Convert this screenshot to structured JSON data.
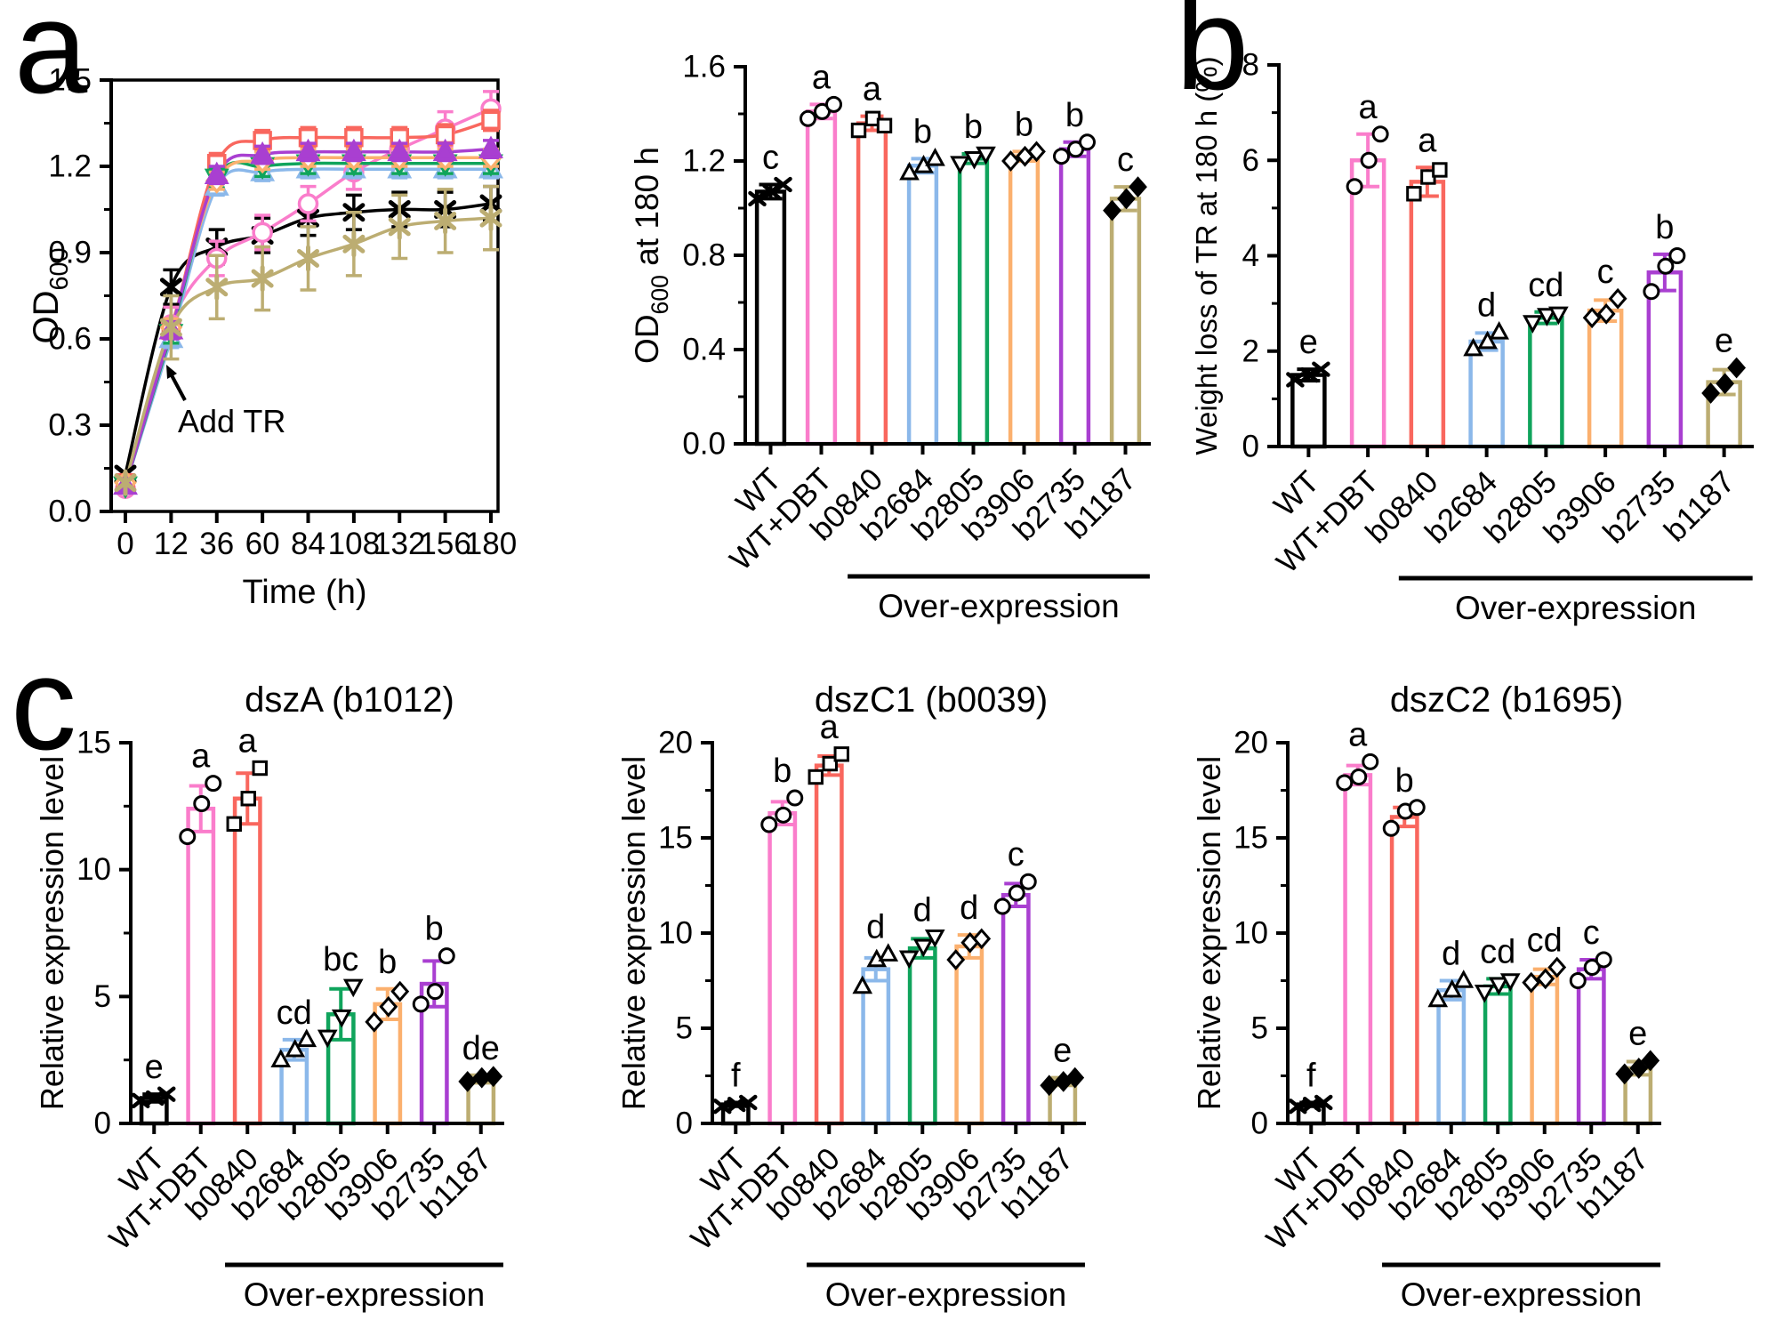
{
  "panel_labels": {
    "a": "a",
    "b": "b",
    "c": "c"
  },
  "palette": {
    "WT": "#000000",
    "WT+DBT": "#FA7DCB",
    "b0840": "#F9675E",
    "b2684": "#8BB8EA",
    "b2805": "#10A45C",
    "b3906": "#FBB06E",
    "b2735": "#A93FD1",
    "b1187": "#BCAD72"
  },
  "categories": [
    "WT",
    "WT+DBT",
    "b0840",
    "b2684",
    "b2805",
    "b3906",
    "b2735",
    "b1187"
  ],
  "group_label": "Over-expression",
  "chart_data": [
    {
      "id": "growth-curve",
      "panel": "a",
      "type": "line",
      "xlabel": "Time (h)",
      "ylabel": "OD_{600}",
      "x": [
        0,
        12,
        36,
        60,
        84,
        108,
        132,
        156,
        180
      ],
      "ylim": [
        0,
        1.5
      ],
      "yticks": [
        "0.0",
        "0.3",
        "0.6",
        "0.9",
        "1.2",
        "1.5"
      ],
      "annotation": "Add TR",
      "legend": "none",
      "series": [
        {
          "name": "WT",
          "marker": "x",
          "filled": false,
          "err": 0.06,
          "values": [
            0.13,
            0.78,
            0.92,
            0.96,
            1.02,
            1.04,
            1.05,
            1.05,
            1.07
          ]
        },
        {
          "name": "WT+DBT",
          "marker": "circle",
          "filled": false,
          "err": 0.06,
          "values": [
            0.08,
            0.65,
            0.88,
            0.97,
            1.07,
            1.18,
            1.26,
            1.33,
            1.4
          ]
        },
        {
          "name": "b0840",
          "marker": "square",
          "filled": false,
          "err": 0.035,
          "values": [
            0.1,
            0.63,
            1.21,
            1.29,
            1.3,
            1.3,
            1.3,
            1.31,
            1.36
          ]
        },
        {
          "name": "b2684",
          "marker": "tri-up",
          "filled": false,
          "err": 0.03,
          "values": [
            0.09,
            0.6,
            1.13,
            1.18,
            1.19,
            1.19,
            1.19,
            1.19,
            1.19
          ]
        },
        {
          "name": "b2805",
          "marker": "tri-down",
          "filled": true,
          "err": 0.035,
          "values": [
            0.09,
            0.62,
            1.16,
            1.2,
            1.21,
            1.21,
            1.21,
            1.21,
            1.21
          ]
        },
        {
          "name": "b3906",
          "marker": "diamond",
          "filled": false,
          "err": 0.03,
          "values": [
            0.1,
            0.64,
            1.15,
            1.22,
            1.23,
            1.23,
            1.23,
            1.23,
            1.23
          ]
        },
        {
          "name": "b2735",
          "marker": "tri-up",
          "filled": true,
          "err": 0.03,
          "values": [
            0.09,
            0.63,
            1.17,
            1.24,
            1.25,
            1.25,
            1.25,
            1.25,
            1.26
          ]
        },
        {
          "name": "b1187",
          "marker": "asterisk",
          "filled": false,
          "err": 0.11,
          "values": [
            0.1,
            0.64,
            0.78,
            0.81,
            0.88,
            0.93,
            0.99,
            1.01,
            1.02
          ]
        }
      ]
    },
    {
      "id": "od600-180h",
      "panel": "a",
      "type": "bar",
      "ylabel": "OD_{600} at 180 h",
      "ylim": [
        0,
        1.6
      ],
      "yticks": [
        "0.0",
        "0.4",
        "0.8",
        "1.2",
        "1.6"
      ],
      "categories": [
        "WT",
        "WT+DBT",
        "b0840",
        "b2684",
        "b2805",
        "b3906",
        "b2735",
        "b1187"
      ],
      "group_label": "Over-expression",
      "group_span": [
        2,
        7
      ],
      "bars": [
        {
          "category": "WT",
          "value": 1.07,
          "err": 0.03,
          "letter": "c",
          "marker": "x",
          "points": [
            1.04,
            1.07,
            1.1
          ]
        },
        {
          "category": "WT+DBT",
          "value": 1.41,
          "err": 0.03,
          "letter": "a",
          "marker": "circle",
          "points": [
            1.38,
            1.41,
            1.44
          ]
        },
        {
          "category": "b0840",
          "value": 1.36,
          "err": 0.03,
          "letter": "a",
          "marker": "square",
          "points": [
            1.33,
            1.38,
            1.35
          ]
        },
        {
          "category": "b2684",
          "value": 1.18,
          "err": 0.03,
          "letter": "b",
          "marker": "tri-up",
          "points": [
            1.15,
            1.18,
            1.21
          ]
        },
        {
          "category": "b2805",
          "value": 1.21,
          "err": 0.02,
          "letter": "b",
          "marker": "tri-down",
          "points": [
            1.19,
            1.21,
            1.23
          ]
        },
        {
          "category": "b3906",
          "value": 1.22,
          "err": 0.02,
          "letter": "b",
          "marker": "diamond",
          "points": [
            1.2,
            1.22,
            1.24
          ]
        },
        {
          "category": "b2735",
          "value": 1.25,
          "err": 0.03,
          "letter": "b",
          "marker": "circle",
          "points": [
            1.22,
            1.25,
            1.28
          ]
        },
        {
          "category": "b1187",
          "value": 1.04,
          "err": 0.05,
          "letter": "c",
          "marker": "diamond-filled",
          "points": [
            0.99,
            1.04,
            1.09
          ]
        }
      ]
    },
    {
      "id": "weight-loss",
      "panel": "b",
      "type": "bar",
      "ylabel": "Weight loss of TR at 180 h (%)",
      "ylim": [
        0,
        8
      ],
      "yticks": [
        "0",
        "2",
        "4",
        "6",
        "8"
      ],
      "categories": [
        "WT",
        "WT+DBT",
        "b0840",
        "b2684",
        "b2805",
        "b3906",
        "b2735",
        "b1187"
      ],
      "group_label": "Over-expression",
      "group_span": [
        2,
        7
      ],
      "bars": [
        {
          "category": "WT",
          "value": 1.5,
          "err": 0.12,
          "letter": "e",
          "marker": "x",
          "points": [
            1.4,
            1.5,
            1.62
          ]
        },
        {
          "category": "WT+DBT",
          "value": 6.0,
          "err": 0.55,
          "letter": "a",
          "marker": "circle",
          "points": [
            5.45,
            6.0,
            6.55
          ]
        },
        {
          "category": "b0840",
          "value": 5.55,
          "err": 0.3,
          "letter": "a",
          "marker": "square",
          "points": [
            5.3,
            5.65,
            5.8
          ]
        },
        {
          "category": "b2684",
          "value": 2.2,
          "err": 0.18,
          "letter": "d",
          "marker": "tri-up",
          "points": [
            2.05,
            2.2,
            2.4
          ]
        },
        {
          "category": "b2805",
          "value": 2.7,
          "err": 0.12,
          "letter": "cd",
          "marker": "tri-down",
          "points": [
            2.6,
            2.75,
            2.78
          ]
        },
        {
          "category": "b3906",
          "value": 2.85,
          "err": 0.22,
          "letter": "c",
          "marker": "diamond",
          "points": [
            2.7,
            2.78,
            3.1
          ]
        },
        {
          "category": "b2735",
          "value": 3.65,
          "err": 0.38,
          "letter": "b",
          "marker": "circle",
          "points": [
            3.25,
            3.78,
            4.0
          ]
        },
        {
          "category": "b1187",
          "value": 1.35,
          "err": 0.26,
          "letter": "e",
          "marker": "diamond-filled",
          "points": [
            1.12,
            1.32,
            1.65
          ]
        }
      ]
    },
    {
      "id": "dszA-b1012",
      "panel": "c",
      "type": "bar",
      "title": "dszA (b1012)",
      "ylabel": "Relative expression level",
      "ylim": [
        0,
        15
      ],
      "yticks": [
        "0",
        "5",
        "10",
        "15"
      ],
      "categories": [
        "WT",
        "WT+DBT",
        "b0840",
        "b2684",
        "b2805",
        "b3906",
        "b2735",
        "b1187"
      ],
      "group_label": "Over-expression",
      "group_span": [
        2,
        7
      ],
      "bars": [
        {
          "category": "WT",
          "value": 1.0,
          "err": 0.15,
          "letter": "e",
          "marker": "x",
          "points": [
            0.9,
            1.0,
            1.15
          ]
        },
        {
          "category": "WT+DBT",
          "value": 12.4,
          "err": 0.9,
          "letter": "a",
          "marker": "circle",
          "points": [
            11.3,
            12.6,
            13.4
          ]
        },
        {
          "category": "b0840",
          "value": 12.8,
          "err": 1.0,
          "letter": "a",
          "marker": "square",
          "points": [
            11.8,
            12.8,
            14.0
          ]
        },
        {
          "category": "b2684",
          "value": 2.9,
          "err": 0.4,
          "letter": "cd",
          "marker": "tri-up",
          "points": [
            2.5,
            2.9,
            3.3
          ]
        },
        {
          "category": "b2805",
          "value": 4.3,
          "err": 1.0,
          "letter": "bc",
          "marker": "tri-down",
          "points": [
            3.4,
            4.2,
            5.4
          ]
        },
        {
          "category": "b3906",
          "value": 4.7,
          "err": 0.6,
          "letter": "b",
          "marker": "diamond",
          "points": [
            4.0,
            4.6,
            5.2
          ]
        },
        {
          "category": "b2735",
          "value": 5.5,
          "err": 0.9,
          "letter": "b",
          "marker": "circle",
          "points": [
            4.7,
            5.2,
            6.6
          ]
        },
        {
          "category": "b1187",
          "value": 1.75,
          "err": 0.15,
          "letter": "de",
          "marker": "diamond-filled",
          "points": [
            1.65,
            1.8,
            1.85
          ]
        }
      ]
    },
    {
      "id": "dszC1-b0039",
      "panel": "c",
      "type": "bar",
      "title": "dszC1 (b0039)",
      "ylabel": "Relative expression level",
      "ylim": [
        0,
        20
      ],
      "yticks": [
        "0",
        "5",
        "10",
        "15",
        "20"
      ],
      "categories": [
        "WT",
        "WT+DBT",
        "b0840",
        "b2684",
        "b2805",
        "b3906",
        "b2735",
        "b1187"
      ],
      "group_label": "Over-expression",
      "group_span": [
        2,
        7
      ],
      "bars": [
        {
          "category": "WT",
          "value": 1.0,
          "err": 0.1,
          "letter": "f",
          "marker": "x",
          "points": [
            0.9,
            1.0,
            1.1
          ]
        },
        {
          "category": "WT+DBT",
          "value": 16.3,
          "err": 0.6,
          "letter": "b",
          "marker": "circle",
          "points": [
            15.7,
            16.2,
            17.1
          ]
        },
        {
          "category": "b0840",
          "value": 18.8,
          "err": 0.5,
          "letter": "a",
          "marker": "square",
          "points": [
            18.2,
            18.9,
            19.4
          ]
        },
        {
          "category": "b2684",
          "value": 8.1,
          "err": 0.6,
          "letter": "d",
          "marker": "tri-up",
          "points": [
            7.2,
            8.6,
            8.9
          ]
        },
        {
          "category": "b2805",
          "value": 9.2,
          "err": 0.5,
          "letter": "d",
          "marker": "tri-down",
          "points": [
            8.7,
            9.3,
            9.8
          ]
        },
        {
          "category": "b3906",
          "value": 9.3,
          "err": 0.6,
          "letter": "d",
          "marker": "diamond",
          "points": [
            8.6,
            9.5,
            9.7
          ]
        },
        {
          "category": "b2735",
          "value": 12.0,
          "err": 0.6,
          "letter": "c",
          "marker": "circle",
          "points": [
            11.4,
            12.1,
            12.7
          ]
        },
        {
          "category": "b1187",
          "value": 2.2,
          "err": 0.2,
          "letter": "e",
          "marker": "diamond-filled",
          "points": [
            2.0,
            2.2,
            2.4
          ]
        }
      ]
    },
    {
      "id": "dszC2-b1695",
      "panel": "c",
      "type": "bar",
      "title": "dszC2 (b1695)",
      "ylabel": "Relative expression level",
      "ylim": [
        0,
        20
      ],
      "yticks": [
        "0",
        "5",
        "10",
        "15",
        "20"
      ],
      "categories": [
        "WT",
        "WT+DBT",
        "b0840",
        "b2684",
        "b2805",
        "b3906",
        "b2735",
        "b1187"
      ],
      "group_label": "Over-expression",
      "group_span": [
        2,
        7
      ],
      "bars": [
        {
          "category": "WT",
          "value": 1.0,
          "err": 0.1,
          "letter": "f",
          "marker": "x",
          "points": [
            0.9,
            1.0,
            1.1
          ]
        },
        {
          "category": "WT+DBT",
          "value": 18.3,
          "err": 0.5,
          "letter": "a",
          "marker": "circle",
          "points": [
            17.9,
            18.2,
            19.0
          ]
        },
        {
          "category": "b0840",
          "value": 16.1,
          "err": 0.5,
          "letter": "b",
          "marker": "circle",
          "points": [
            15.5,
            16.4,
            16.6
          ]
        },
        {
          "category": "b2684",
          "value": 7.0,
          "err": 0.5,
          "letter": "d",
          "marker": "tri-up",
          "points": [
            6.5,
            7.0,
            7.5
          ]
        },
        {
          "category": "b2805",
          "value": 7.2,
          "err": 0.4,
          "letter": "cd",
          "marker": "tri-down",
          "points": [
            6.9,
            7.3,
            7.5
          ]
        },
        {
          "category": "b3906",
          "value": 7.7,
          "err": 0.4,
          "letter": "cd",
          "marker": "diamond",
          "points": [
            7.4,
            7.6,
            8.2
          ]
        },
        {
          "category": "b2735",
          "value": 8.1,
          "err": 0.5,
          "letter": "c",
          "marker": "circle",
          "points": [
            7.5,
            8.2,
            8.6
          ]
        },
        {
          "category": "b1187",
          "value": 2.9,
          "err": 0.35,
          "letter": "e",
          "marker": "diamond-filled",
          "points": [
            2.6,
            2.9,
            3.3
          ]
        }
      ]
    }
  ]
}
